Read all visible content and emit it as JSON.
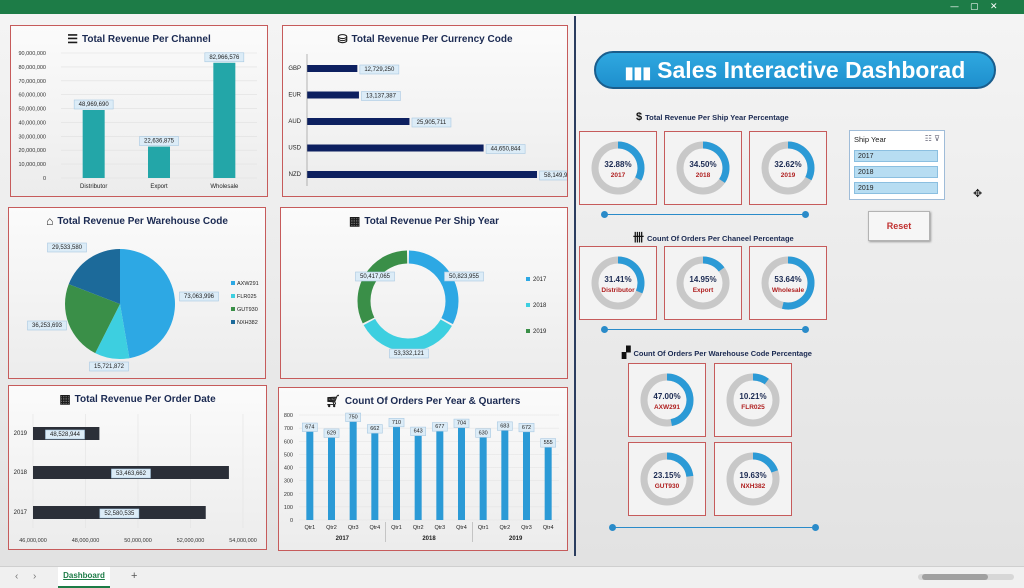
{
  "title": "Sales Interactive Dashborad",
  "colors": {
    "teal": "#23a6a8",
    "navy": "#0d2060",
    "blue": "#2b9ad6",
    "ring_grey": "#c8c8c8",
    "panel_border": "#c65b5b",
    "excel_green": "#1d7c47"
  },
  "channel": {
    "title": "Total Revenue Per Channel",
    "icon": "list-icon",
    "chart_data": {
      "type": "bar",
      "categories": [
        "Distributor",
        "Export",
        "Wholesale"
      ],
      "values": [
        48969690,
        22636875,
        82966576
      ],
      "labels": [
        "48,969,690",
        "22,636,875",
        "82,966,576"
      ],
      "ylim": [
        0,
        90000000
      ],
      "ticks": [
        "0",
        "10,000,000",
        "20,000,000",
        "30,000,000",
        "40,000,000",
        "50,000,000",
        "60,000,000",
        "70,000,000",
        "80,000,000",
        "90,000,000"
      ]
    }
  },
  "currency": {
    "title": "Total Revenue Per Currency Code",
    "icon": "coins-icon",
    "chart_data": {
      "type": "bar",
      "orientation": "horizontal",
      "categories": [
        "GBP",
        "EUR",
        "AUD",
        "USD",
        "NZD"
      ],
      "values": [
        12729250,
        13137387,
        25905711,
        44650844,
        58149950
      ],
      "labels": [
        "12,729,250",
        "13,137,387",
        "25,905,711",
        "44,650,844",
        "58,149,950"
      ]
    }
  },
  "warehouse": {
    "title": "Total Revenue Per Warehouse Code",
    "icon": "warehouse-icon",
    "chart_data": {
      "type": "pie",
      "categories": [
        "AXW291",
        "FLR025",
        "GUT930",
        "NXH382"
      ],
      "values": [
        73063996,
        15721872,
        36253693,
        29533580
      ],
      "labels": [
        "73,063,996",
        "15,721,872",
        "36,253,693",
        "29,533,580"
      ],
      "colors": [
        "#2da8e4",
        "#3dcfe0",
        "#3a8f48",
        "#1c6a9a"
      ],
      "legend": "right"
    }
  },
  "shipyear": {
    "title": "Total Revenue Per Ship Year",
    "icon": "calendar-icon",
    "chart_data": {
      "type": "pie",
      "donut": true,
      "categories": [
        "2017",
        "2018",
        "2019"
      ],
      "values": [
        50823955,
        53332121,
        50417065
      ],
      "labels": [
        "50,823,955",
        "53,332,121",
        "50,417,065"
      ],
      "colors": [
        "#2da8e4",
        "#3dcfe0",
        "#3a8f48"
      ],
      "legend": "right"
    }
  },
  "orderdate": {
    "title": "Total Revenue Per Order Date",
    "icon": "calendar-icon",
    "chart_data": {
      "type": "bar",
      "orientation": "horizontal",
      "categories": [
        "2019",
        "2018",
        "2017"
      ],
      "values": [
        48528944,
        53463662,
        52580535
      ],
      "labels": [
        "48,528,944",
        "53,463,662",
        "52,580,535"
      ],
      "xlim": [
        46000000,
        54000000
      ],
      "ticks": [
        "46,000,000",
        "48,000,000",
        "50,000,000",
        "52,000,000",
        "54,000,000"
      ]
    }
  },
  "orders": {
    "title": "Count Of Orders Per Year & Quarters",
    "icon": "cart-icon",
    "chart_data": {
      "type": "bar",
      "categories": [
        "Qtr1",
        "Qtr2",
        "Qtr3",
        "Qtr4",
        "Qtr1",
        "Qtr2",
        "Qtr3",
        "Qtr4",
        "Qtr1",
        "Qtr2",
        "Qtr3",
        "Qtr4"
      ],
      "groups": [
        "2017",
        "2018",
        "2019"
      ],
      "values": [
        674,
        629,
        750,
        662,
        710,
        643,
        677,
        704,
        630,
        683,
        672,
        555
      ],
      "ylim": [
        0,
        800
      ],
      "ticks": [
        "0",
        "100",
        "200",
        "300",
        "400",
        "500",
        "600",
        "700",
        "800"
      ]
    }
  },
  "kpi_shipyear": {
    "title": "Total Revenue Per Ship Year Percentage",
    "icon": "dollar-icon",
    "items": [
      {
        "pct": "32.88%",
        "label": "2017",
        "value": 0.3288
      },
      {
        "pct": "34.50%",
        "label": "2018",
        "value": 0.345
      },
      {
        "pct": "32.62%",
        "label": "2019",
        "value": 0.3262
      }
    ]
  },
  "kpi_channel": {
    "title": "Count Of Orders Per Chaneel Percentage",
    "icon": "tally-icon",
    "items": [
      {
        "pct": "31.41%",
        "label": "Distributor",
        "value": 0.3141
      },
      {
        "pct": "14.95%",
        "label": "Export",
        "value": 0.1495
      },
      {
        "pct": "53.64%",
        "label": "Wholesale",
        "value": 0.5364
      }
    ]
  },
  "kpi_warehouse": {
    "title": "Count Of Orders Per Warehouse Code Percentage",
    "icon": "boxes-icon",
    "items": [
      {
        "pct": "47.00%",
        "label": "AXW291",
        "value": 0.47
      },
      {
        "pct": "10.21%",
        "label": "FLR025",
        "value": 0.1021
      },
      {
        "pct": "23.15%",
        "label": "GUT930",
        "value": 0.2315
      },
      {
        "pct": "19.63%",
        "label": "NXH382",
        "value": 0.1963
      }
    ]
  },
  "slicer": {
    "header": "Ship Year",
    "items": [
      "2017",
      "2018",
      "2019"
    ]
  },
  "reset_label": "Reset",
  "sheet_tab": "Dashboard",
  "add_sheet": "+",
  "nav_prev": "‹",
  "nav_next": "›"
}
